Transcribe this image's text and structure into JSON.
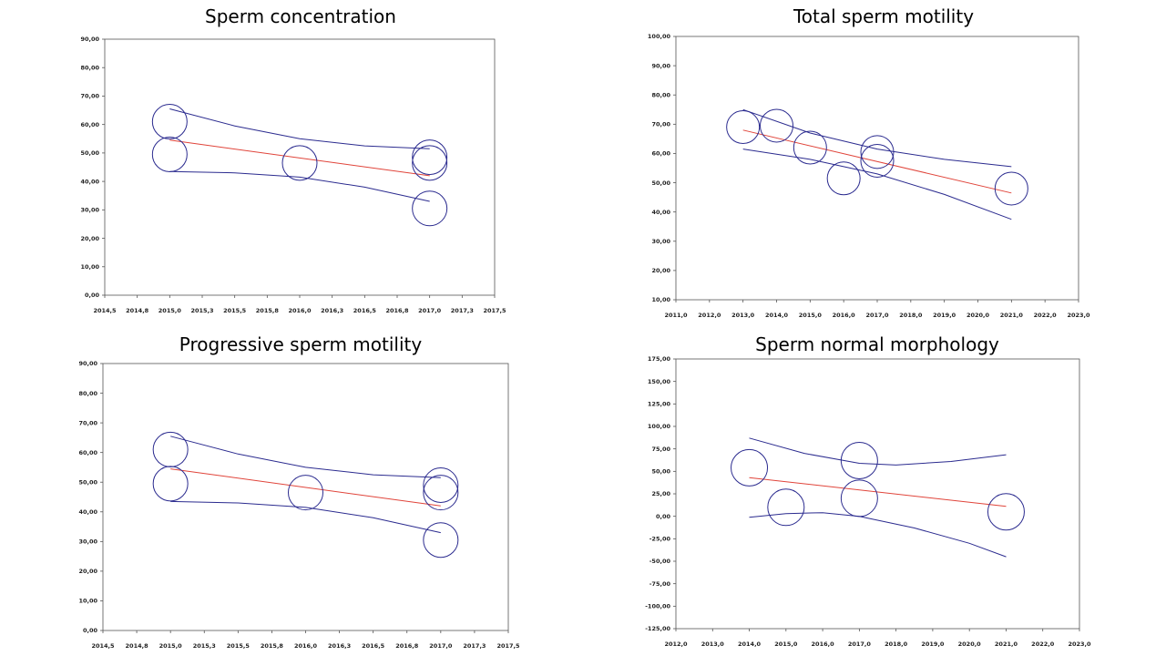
{
  "chart_data": [
    {
      "type": "scatter",
      "title": "Sperm concentration",
      "xlim": [
        2014.5,
        2017.5
      ],
      "ylim": [
        0,
        90
      ],
      "xticks": [
        "2014,5",
        "2014,8",
        "2015,0",
        "2015,3",
        "2015,5",
        "2015,8",
        "2016,0",
        "2016,3",
        "2016,5",
        "2016,8",
        "2017,0",
        "2017,3",
        "2017,5"
      ],
      "yticks": [
        "0,00",
        "10,00",
        "20,00",
        "30,00",
        "40,00",
        "50,00",
        "60,00",
        "70,00",
        "80,00",
        "90,00"
      ],
      "points": [
        {
          "x": 2015.0,
          "y": 61.0
        },
        {
          "x": 2015.0,
          "y": 49.5
        },
        {
          "x": 2016.0,
          "y": 46.5
        },
        {
          "x": 2017.0,
          "y": 48.5
        },
        {
          "x": 2017.0,
          "y": 46.5
        },
        {
          "x": 2017.0,
          "y": 30.5
        }
      ],
      "fit": {
        "x": [
          2015.0,
          2017.0
        ],
        "y": [
          54.5,
          42.0
        ]
      },
      "upper": {
        "x": [
          2015.0,
          2015.5,
          2016.0,
          2016.5,
          2017.0
        ],
        "y": [
          65.5,
          59.5,
          55.0,
          52.5,
          51.5
        ]
      },
      "lower": {
        "x": [
          2015.0,
          2015.5,
          2016.0,
          2016.5,
          2017.0
        ],
        "y": [
          43.5,
          43.0,
          41.5,
          38.0,
          33.0
        ]
      },
      "colors": {
        "points": "#2b2b8f",
        "fit": "#e0443a",
        "band": "#2b2b8f"
      }
    },
    {
      "type": "scatter",
      "title": "Total sperm motility",
      "xlim": [
        2011.0,
        2023.0
      ],
      "ylim": [
        10,
        100
      ],
      "xticks": [
        "2011,0",
        "2012,0",
        "2013,0",
        "2014,0",
        "2015,0",
        "2016,0",
        "2017,0",
        "2018,0",
        "2019,0",
        "2020,0",
        "2021,0",
        "2022,0",
        "2023,0"
      ],
      "yticks": [
        "10,00",
        "20,00",
        "30,00",
        "40,00",
        "50,00",
        "60,00",
        "70,00",
        "80,00",
        "90,00",
        "100,00"
      ],
      "points": [
        {
          "x": 2013.0,
          "y": 69.0
        },
        {
          "x": 2014.0,
          "y": 69.5
        },
        {
          "x": 2015.0,
          "y": 62.0
        },
        {
          "x": 2016.0,
          "y": 51.5
        },
        {
          "x": 2017.0,
          "y": 60.5
        },
        {
          "x": 2017.0,
          "y": 57.5
        },
        {
          "x": 2021.0,
          "y": 48.0
        }
      ],
      "fit": {
        "x": [
          2013.0,
          2021.0
        ],
        "y": [
          68.0,
          46.5
        ]
      },
      "upper": {
        "x": [
          2013.0,
          2015.0,
          2017.0,
          2019.0,
          2021.0
        ],
        "y": [
          75.0,
          67.0,
          61.5,
          58.0,
          55.5
        ]
      },
      "lower": {
        "x": [
          2013.0,
          2015.0,
          2017.0,
          2019.0,
          2021.0
        ],
        "y": [
          61.5,
          58.0,
          53.0,
          46.0,
          37.5
        ]
      },
      "colors": {
        "points": "#2b2b8f",
        "fit": "#e0443a",
        "band": "#2b2b8f"
      }
    },
    {
      "type": "scatter",
      "title": "Progressive sperm motility",
      "xlim": [
        2014.5,
        2017.5
      ],
      "ylim": [
        0,
        90
      ],
      "xticks": [
        "2014,5",
        "2014,8",
        "2015,0",
        "2015,3",
        "2015,5",
        "2015,8",
        "2016,0",
        "2016,3",
        "2016,5",
        "2016,8",
        "2017,0",
        "2017,3",
        "2017,5"
      ],
      "yticks": [
        "0,00",
        "10,00",
        "20,00",
        "30,00",
        "40,00",
        "50,00",
        "60,00",
        "70,00",
        "80,00",
        "90,00"
      ],
      "points": [
        {
          "x": 2015.0,
          "y": 61.0
        },
        {
          "x": 2015.0,
          "y": 49.5
        },
        {
          "x": 2016.0,
          "y": 46.5
        },
        {
          "x": 2017.0,
          "y": 49.0
        },
        {
          "x": 2017.0,
          "y": 46.5
        },
        {
          "x": 2017.0,
          "y": 30.5
        }
      ],
      "fit": {
        "x": [
          2015.0,
          2017.0
        ],
        "y": [
          54.5,
          42.0
        ]
      },
      "upper": {
        "x": [
          2015.0,
          2015.5,
          2016.0,
          2016.5,
          2017.0
        ],
        "y": [
          65.5,
          59.5,
          55.0,
          52.5,
          51.5
        ]
      },
      "lower": {
        "x": [
          2015.0,
          2015.5,
          2016.0,
          2016.5,
          2017.0
        ],
        "y": [
          43.5,
          43.0,
          41.5,
          38.0,
          33.0
        ]
      },
      "colors": {
        "points": "#2b2b8f",
        "fit": "#e0443a",
        "band": "#2b2b8f"
      }
    },
    {
      "type": "scatter",
      "title": "Sperm normal morphology",
      "xlim": [
        2012.0,
        2023.0
      ],
      "ylim": [
        -125,
        175
      ],
      "xticks": [
        "2012,0",
        "2013,0",
        "2014,0",
        "2015,0",
        "2016,0",
        "2017,0",
        "2018,0",
        "2019,0",
        "2020,0",
        "2021,0",
        "2022,0",
        "2023,0"
      ],
      "yticks": [
        "-125,00",
        "-100,00",
        "-75,00",
        "-50,00",
        "-25,00",
        "0,00",
        "25,00",
        "50,00",
        "75,00",
        "100,00",
        "125,00",
        "150,00",
        "175,00"
      ],
      "points": [
        {
          "x": 2014.0,
          "y": 54.0
        },
        {
          "x": 2015.0,
          "y": 10.0
        },
        {
          "x": 2017.0,
          "y": 62.0
        },
        {
          "x": 2017.0,
          "y": 20.0
        },
        {
          "x": 2021.0,
          "y": 5.0
        }
      ],
      "fit": {
        "x": [
          2014.0,
          2021.0
        ],
        "y": [
          43.0,
          11.0
        ]
      },
      "upper": {
        "x": [
          2014.0,
          2015.5,
          2017.0,
          2018.0,
          2019.5,
          2021.0
        ],
        "y": [
          87.0,
          70.0,
          59.0,
          57.0,
          61.0,
          68.5
        ]
      },
      "lower": {
        "x": [
          2014.0,
          2015.0,
          2016.0,
          2017.0,
          2018.5,
          2020.0,
          2021.0
        ],
        "y": [
          -1.0,
          3.0,
          4.0,
          0.0,
          -13.0,
          -30.0,
          -45.0
        ]
      },
      "colors": {
        "points": "#2b2b8f",
        "fit": "#e0443a",
        "band": "#2b2b8f"
      }
    }
  ]
}
